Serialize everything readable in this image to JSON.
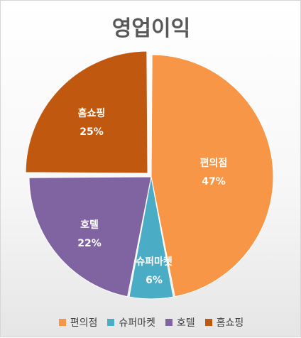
{
  "chart_data": {
    "type": "pie",
    "title": "영업이익",
    "categories": [
      "편의점",
      "슈퍼마켓",
      "호텔",
      "홈쇼핑"
    ],
    "values": [
      47,
      6,
      22,
      25
    ],
    "value_labels": [
      "47%",
      "6%",
      "22%",
      "25%"
    ],
    "colors": [
      "#f79646",
      "#4bacc6",
      "#8064a2",
      "#c0590f"
    ],
    "exploded": [
      false,
      false,
      false,
      true
    ],
    "legend_position": "bottom"
  }
}
